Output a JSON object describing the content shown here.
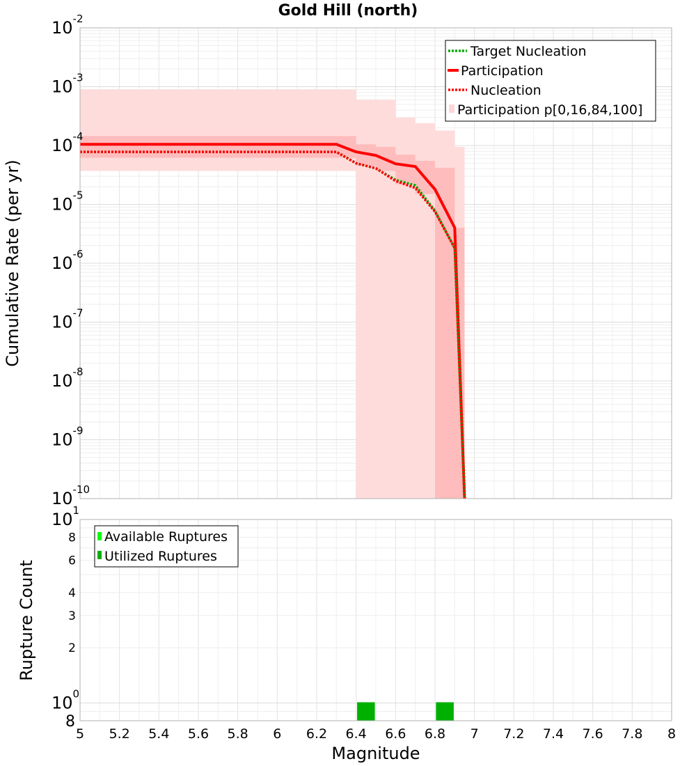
{
  "chart_data": [
    {
      "type": "line",
      "title": "Gold Hill (north)",
      "xlabel": "",
      "ylabel": "Cumulative Rate (per yr)",
      "xlim": [
        5,
        8
      ],
      "ylim": [
        1e-10,
        0.01
      ],
      "yscale": "log",
      "grid": true,
      "y_tick_labels": [
        {
          "base": "10",
          "exp": "-2"
        },
        {
          "base": "10",
          "exp": "-3"
        },
        {
          "base": "10",
          "exp": "-4"
        },
        {
          "base": "10",
          "exp": "-5"
        },
        {
          "base": "10",
          "exp": "-6"
        },
        {
          "base": "10",
          "exp": "-7"
        },
        {
          "base": "10",
          "exp": "-8"
        },
        {
          "base": "10",
          "exp": "-9"
        },
        {
          "base": "10",
          "exp": "-10"
        }
      ],
      "legend": {
        "placement": "top-right",
        "entries": [
          {
            "label": "Target Nucleation",
            "color": "#00aa00",
            "style": "dotted"
          },
          {
            "label": "Participation",
            "color": "#ff0000",
            "style": "solid"
          },
          {
            "label": "Nucleation",
            "color": "#ff0000",
            "style": "dotted"
          },
          {
            "label": "Participation p[0,16,84,100]",
            "color": "#ffd6d6",
            "style": "band"
          }
        ]
      },
      "bands": [
        {
          "name": "Participation p[0,100]",
          "color": "#ffdcdc",
          "x": [
            5.0,
            6.3,
            6.4,
            6.5,
            6.6,
            6.7,
            6.8,
            6.9
          ],
          "lower": [
            3.7e-05,
            3.7e-05,
            1e-10,
            1e-10,
            1e-10,
            1e-10,
            1e-10,
            1e-10
          ],
          "upper": [
            0.0009,
            0.0009,
            0.0006,
            0.0006,
            0.0003,
            0.00024,
            0.00018,
            9.5e-05
          ]
        },
        {
          "name": "Participation p[16,84]",
          "color": "#ffbcbc",
          "x": [
            5.0,
            6.3,
            6.4,
            6.5,
            6.6,
            6.7,
            6.8,
            6.9
          ],
          "lower": [
            6.2e-05,
            6.2e-05,
            4.5e-05,
            3.7e-05,
            2.2e-05,
            1.5e-05,
            1e-10,
            1e-10
          ],
          "upper": [
            0.000145,
            0.000145,
            0.000105,
            9.5e-05,
            7e-05,
            5.5e-05,
            4.2e-05,
            4e-06
          ]
        }
      ],
      "series": [
        {
          "name": "Participation",
          "color": "#ff0000",
          "style": "solid",
          "x": [
            5.0,
            6.3,
            6.4,
            6.5,
            6.6,
            6.7,
            6.8,
            6.9,
            6.95
          ],
          "values": [
            0.000105,
            0.000105,
            7.8e-05,
            6.8e-05,
            4.9e-05,
            4.4e-05,
            1.8e-05,
            4e-06,
            1e-10
          ]
        },
        {
          "name": "Target Nucleation",
          "color": "#00aa00",
          "style": "dotted",
          "x": [
            5.0,
            6.3,
            6.4,
            6.5,
            6.6,
            6.7,
            6.8,
            6.9,
            6.95
          ],
          "values": [
            7.8e-05,
            7.8e-05,
            5e-05,
            4.1e-05,
            2.6e-05,
            2.1e-05,
            7.8e-06,
            1.8e-06,
            1e-10
          ]
        },
        {
          "name": "Nucleation",
          "color": "#ff0000",
          "style": "dotted",
          "x": [
            5.0,
            6.3,
            6.4,
            6.5,
            6.6,
            6.7,
            6.8,
            6.9,
            6.95
          ],
          "values": [
            7.8e-05,
            7.8e-05,
            5e-05,
            4.1e-05,
            2.5e-05,
            1.9e-05,
            7.5e-06,
            1.8e-06,
            1e-10
          ]
        }
      ]
    },
    {
      "type": "bar",
      "title": "",
      "xlabel": "Magnitude",
      "ylabel": "Rupture Count",
      "xlim": [
        5,
        8
      ],
      "ylim": [
        0.8,
        10
      ],
      "yscale": "log",
      "grid": true,
      "x_tick_labels": [
        "5",
        "5.2",
        "5.4",
        "5.6",
        "5.8",
        "6",
        "6.2",
        "6.4",
        "6.6",
        "6.8",
        "7",
        "7.2",
        "7.4",
        "7.6",
        "7.8",
        "8"
      ],
      "y_tick_labels": [
        {
          "value": 10,
          "base": "10",
          "exp": "1"
        },
        {
          "value": 8,
          "label": "8"
        },
        {
          "value": 6,
          "label": "6"
        },
        {
          "value": 4,
          "label": "4"
        },
        {
          "value": 3,
          "label": "3"
        },
        {
          "value": 2,
          "label": "2"
        },
        {
          "value": 1,
          "base": "10",
          "exp": "0"
        },
        {
          "value": 0.8,
          "label": "8"
        }
      ],
      "legend": {
        "placement": "top-left",
        "entries": [
          {
            "label": "Available Ruptures",
            "color": "#00ff00"
          },
          {
            "label": "Utilized Ruptures",
            "color": "#00b000"
          }
        ]
      },
      "bars": [
        {
          "series": "Utilized Ruptures",
          "color": "#00b000",
          "x": 6.45,
          "width": 0.09,
          "value": 1
        },
        {
          "series": "Utilized Ruptures",
          "color": "#00b000",
          "x": 6.85,
          "width": 0.09,
          "value": 1
        }
      ]
    }
  ]
}
